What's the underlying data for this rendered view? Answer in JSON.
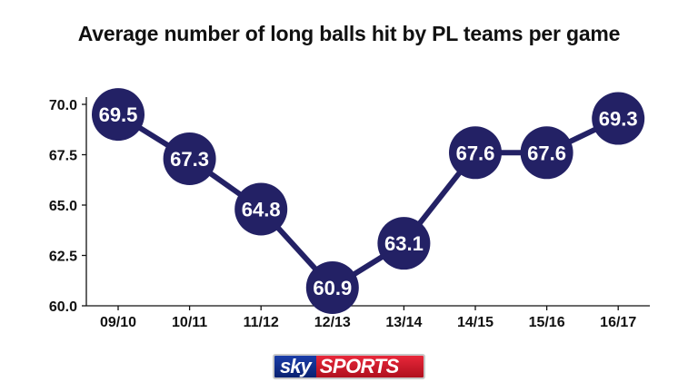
{
  "chart_data": {
    "type": "line",
    "title": "Average number of long balls hit by PL teams per game",
    "xlabel": "",
    "ylabel": "",
    "categories": [
      "09/10",
      "10/11",
      "11/12",
      "12/13",
      "13/14",
      "14/15",
      "15/16",
      "16/17"
    ],
    "values": [
      69.5,
      67.3,
      64.8,
      60.9,
      63.1,
      67.6,
      67.6,
      69.3
    ],
    "value_labels": [
      "69.5",
      "67.3",
      "64.8",
      "60.9",
      "63.1",
      "67.6",
      "67.6",
      "69.3"
    ],
    "ylim": [
      60.0,
      70.0
    ],
    "yticks": [
      "60.0",
      "62.5",
      "65.0",
      "67.5",
      "70.0"
    ],
    "ytick_values": [
      60.0,
      62.5,
      65.0,
      67.5,
      70.0
    ],
    "grid": false,
    "legend": "none",
    "colors": {
      "marker": "#232165",
      "line": "#232165",
      "label": "#ffffff",
      "axis": "#111111"
    }
  },
  "logo": {
    "left": "sky",
    "right": "SPORTS"
  }
}
